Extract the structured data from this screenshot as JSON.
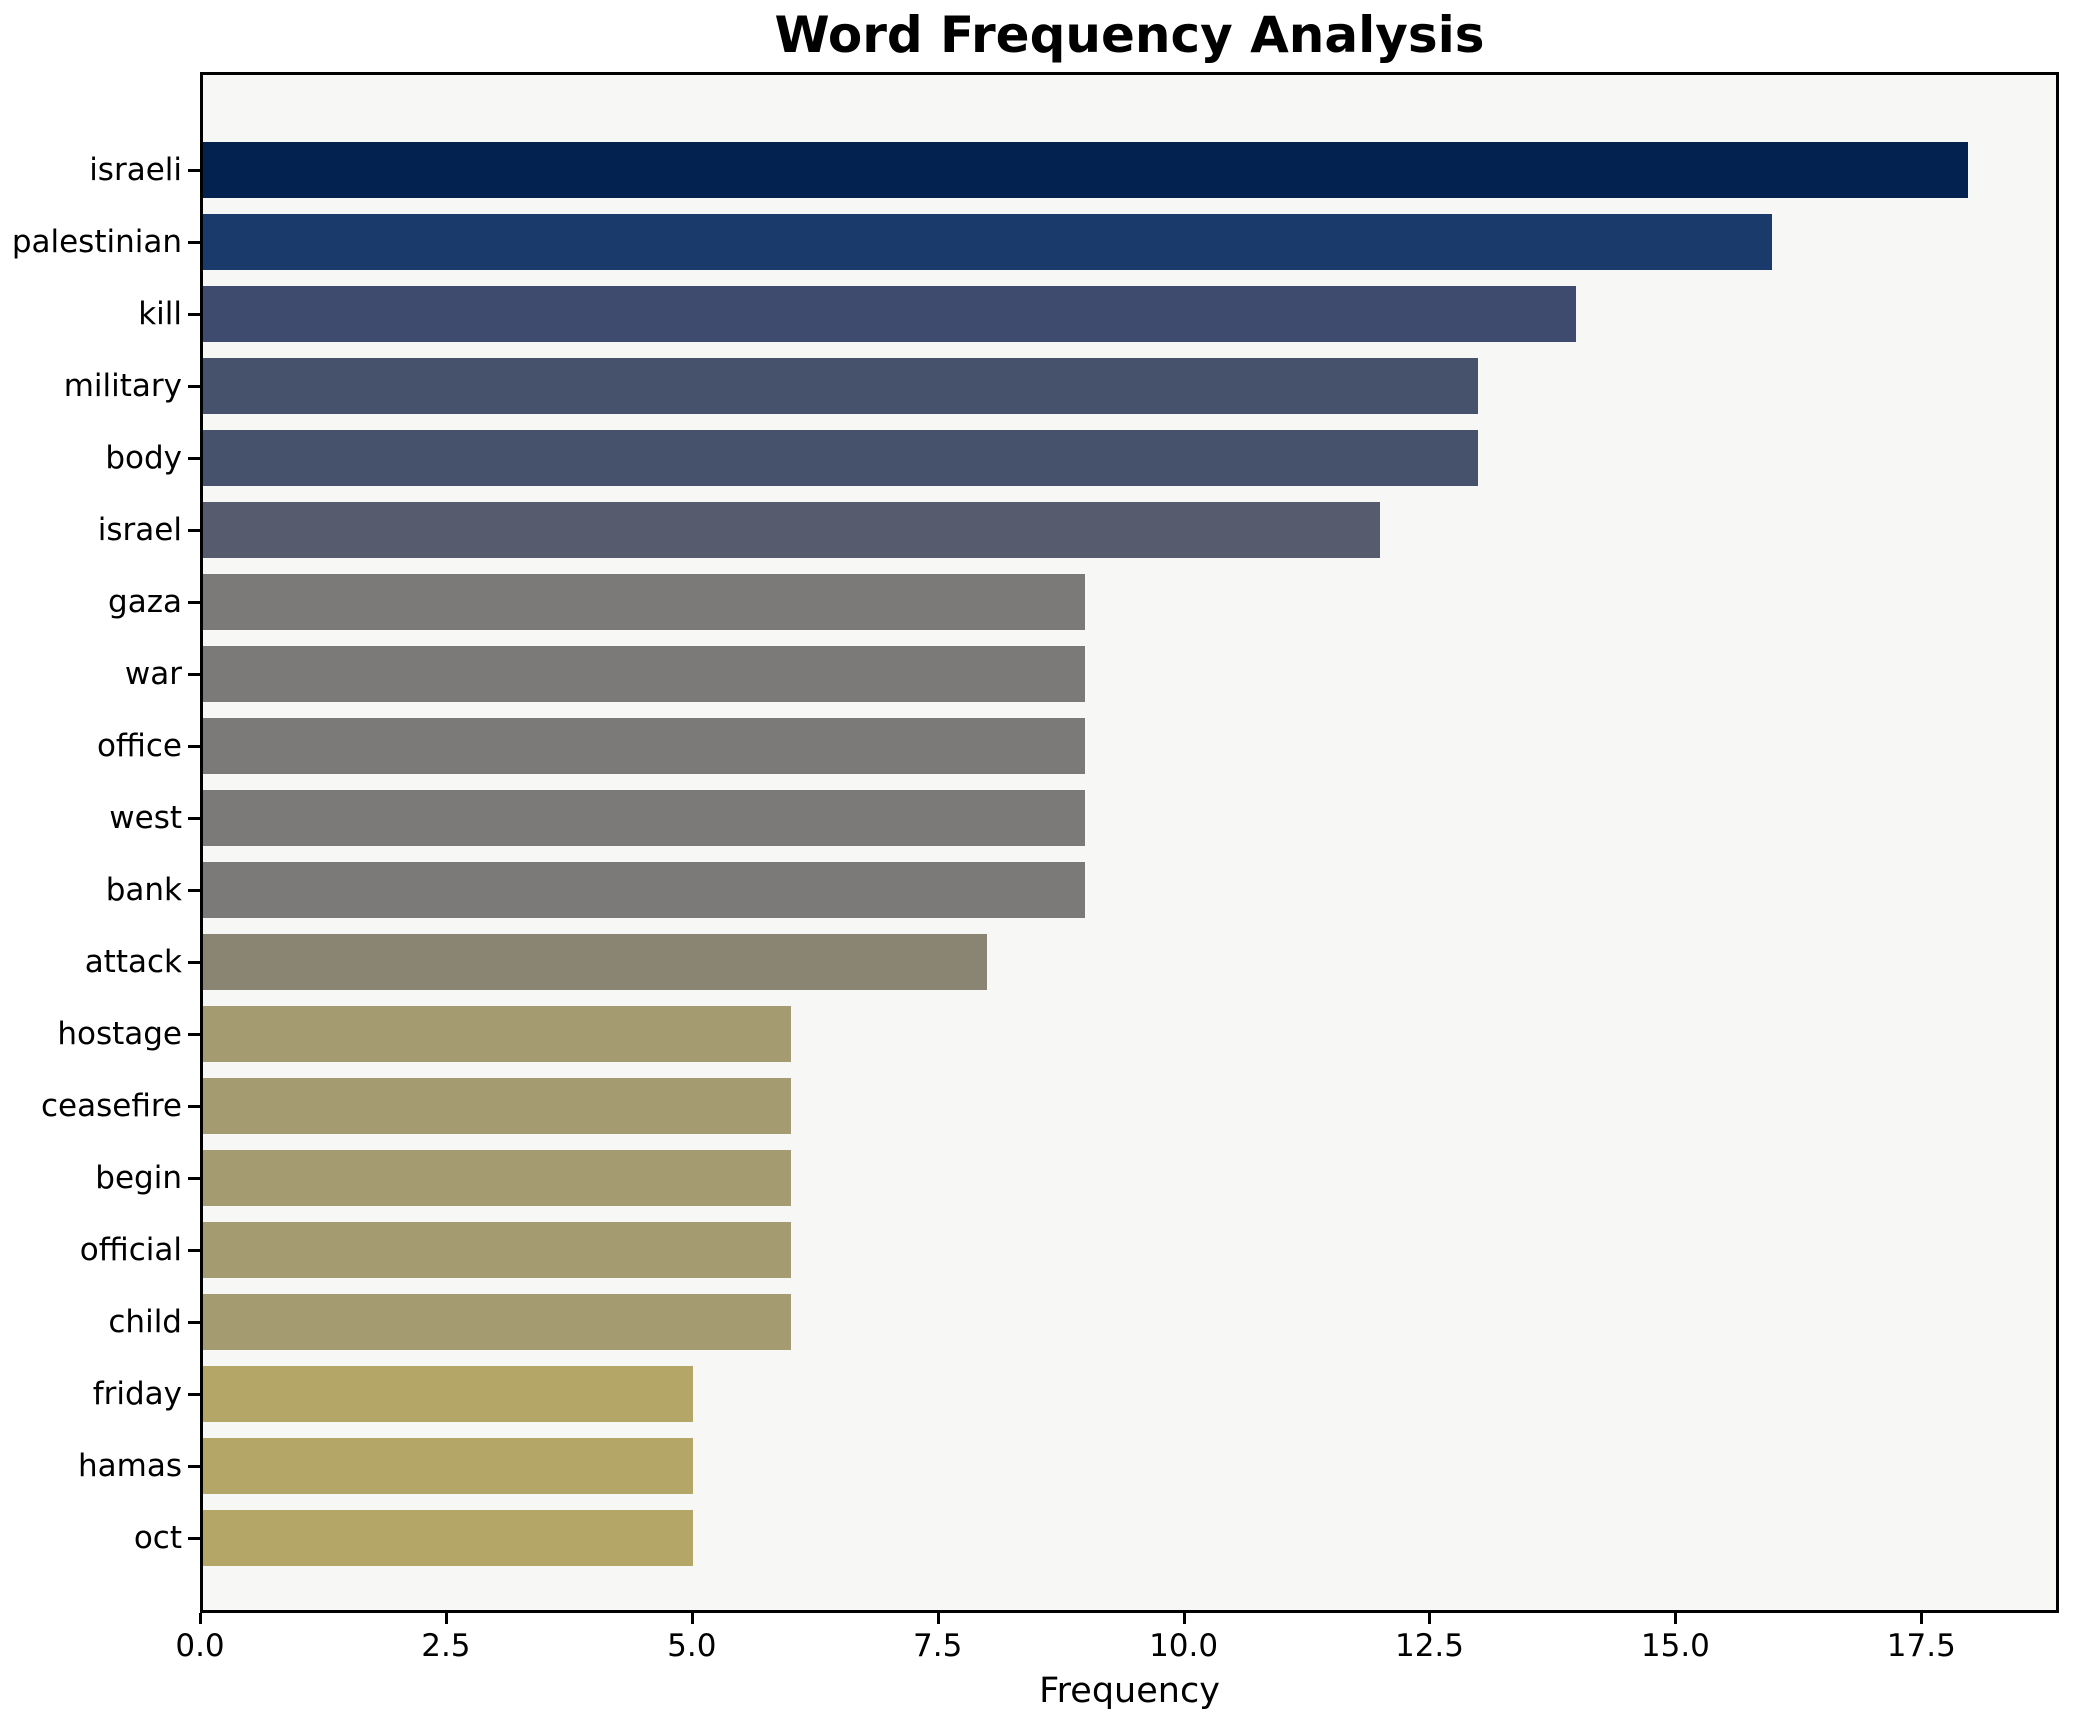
{
  "chart_data": {
    "type": "bar",
    "orientation": "horizontal",
    "title": "Word Frequency Analysis",
    "xlabel": "Frequency",
    "ylabel": "",
    "categories": [
      "israeli",
      "palestinian",
      "kill",
      "military",
      "body",
      "israel",
      "gaza",
      "war",
      "office",
      "west",
      "bank",
      "attack",
      "hostage",
      "ceasefire",
      "begin",
      "official",
      "child",
      "friday",
      "hamas",
      "oct"
    ],
    "values": [
      18,
      16,
      14,
      13,
      13,
      12,
      9,
      9,
      9,
      9,
      9,
      8,
      6,
      6,
      6,
      6,
      6,
      5,
      5,
      5
    ],
    "bar_colors": [
      "#04224f",
      "#1a3a6b",
      "#3e4b6e",
      "#46516c",
      "#46516c",
      "#565c6d",
      "#7b7a78",
      "#7b7a78",
      "#7b7a78",
      "#7b7a78",
      "#7b7a78",
      "#8a8473",
      "#a49b71",
      "#a49b71",
      "#a49b71",
      "#a49b71",
      "#a49b71",
      "#b3a666",
      "#b3a666",
      "#b3a666"
    ],
    "xlim": [
      0,
      18.9
    ],
    "xticks": [
      0,
      2.5,
      5,
      7.5,
      10,
      12.5,
      15,
      17.5
    ],
    "xtick_labels": [
      "0.0",
      "2.5",
      "5.0",
      "7.5",
      "10.0",
      "12.5",
      "15.0",
      "17.5"
    ],
    "grid": false,
    "legend": null,
    "colors": {
      "figure_bg": "#ffffff",
      "plot_bg": "#f7f7f6",
      "spine": "#000000",
      "text": "#000000"
    }
  }
}
